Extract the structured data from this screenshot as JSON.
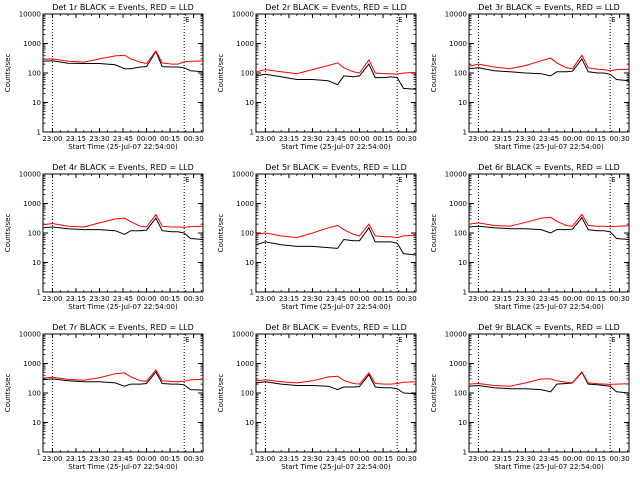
{
  "xlabel": "Start Time (25-Jul-07 22:54:00)",
  "ylabel": "Counts/sec",
  "x_tick_labels": [
    "23:00",
    "23:15",
    "23:30",
    "23:45",
    "00:00",
    "00:15",
    "00:30"
  ],
  "y_tick_labels": [
    "1",
    "10",
    "100",
    "1000",
    "10000"
  ],
  "colors": {
    "events": "#000000",
    "lld": "#ff0000",
    "axes": "#000000",
    "background": "#ffffff"
  },
  "chart_data": [
    {
      "type": "line",
      "title": "Det 1r BLACK = Events, RED = LLD",
      "corner_mark": "E",
      "ylim": [
        1,
        10000
      ],
      "ylog": true,
      "xlim_minutes": [
        -6,
        96
      ],
      "vlines_minutes": [
        0,
        84
      ],
      "x_minutes": [
        -6,
        0,
        10,
        20,
        30,
        40,
        46,
        50,
        56,
        60,
        66,
        70,
        76,
        80,
        84,
        88,
        96
      ],
      "series": [
        {
          "name": "BLACK = Events",
          "values": [
            250,
            260,
            215,
            210,
            210,
            190,
            140,
            140,
            160,
            165,
            530,
            165,
            160,
            160,
            150,
            120,
            110
          ]
        },
        {
          "name": "RED = LLD",
          "values": [
            290,
            300,
            250,
            235,
            300,
            380,
            400,
            300,
            230,
            210,
            560,
            220,
            200,
            200,
            240,
            250,
            255
          ]
        }
      ]
    },
    {
      "type": "line",
      "title": "Det 2r BLACK = Events, RED = LLD",
      "corner_mark": "E",
      "ylim": [
        1,
        10000
      ],
      "ylog": true,
      "xlim_minutes": [
        -6,
        96
      ],
      "vlines_minutes": [
        0,
        84
      ],
      "x_minutes": [
        -6,
        0,
        10,
        20,
        30,
        40,
        46,
        50,
        56,
        60,
        66,
        70,
        76,
        80,
        84,
        88,
        96
      ],
      "series": [
        {
          "name": "BLACK = Events",
          "values": [
            80,
            90,
            75,
            60,
            60,
            55,
            40,
            80,
            75,
            80,
            200,
            70,
            70,
            75,
            70,
            30,
            28
          ]
        },
        {
          "name": "RED = LLD",
          "values": [
            110,
            130,
            110,
            95,
            130,
            180,
            220,
            150,
            110,
            100,
            280,
            100,
            95,
            95,
            90,
            100,
            105
          ]
        }
      ]
    },
    {
      "type": "line",
      "title": "Det 3r BLACK = Events, RED = LLD",
      "corner_mark": "E",
      "ylim": [
        1,
        10000
      ],
      "ylog": true,
      "xlim_minutes": [
        -6,
        96
      ],
      "vlines_minutes": [
        0,
        84
      ],
      "x_minutes": [
        -6,
        0,
        10,
        20,
        30,
        40,
        46,
        50,
        56,
        60,
        66,
        70,
        76,
        80,
        84,
        88,
        96
      ],
      "series": [
        {
          "name": "BLACK = Events",
          "values": [
            140,
            150,
            120,
            110,
            100,
            95,
            80,
            110,
            110,
            115,
            300,
            110,
            100,
            100,
            90,
            60,
            55
          ]
        },
        {
          "name": "RED = LLD",
          "values": [
            170,
            200,
            160,
            140,
            180,
            260,
            320,
            220,
            150,
            140,
            400,
            150,
            135,
            130,
            120,
            130,
            135
          ]
        }
      ]
    },
    {
      "type": "line",
      "title": "Det 4r BLACK = Events, RED = LLD",
      "corner_mark": "E",
      "ylim": [
        1,
        10000
      ],
      "ylog": true,
      "xlim_minutes": [
        -6,
        96
      ],
      "vlines_minutes": [
        0,
        84
      ],
      "x_minutes": [
        -6,
        0,
        10,
        20,
        30,
        40,
        46,
        50,
        56,
        60,
        66,
        70,
        76,
        80,
        84,
        88,
        96
      ],
      "series": [
        {
          "name": "BLACK = Events",
          "values": [
            150,
            160,
            140,
            130,
            130,
            120,
            90,
            120,
            120,
            125,
            320,
            120,
            110,
            110,
            100,
            65,
            60
          ]
        },
        {
          "name": "RED = LLD",
          "values": [
            190,
            210,
            170,
            160,
            220,
            300,
            320,
            240,
            170,
            160,
            420,
            170,
            160,
            160,
            155,
            165,
            170
          ]
        }
      ]
    },
    {
      "type": "line",
      "title": "Det 5r BLACK = Events, RED = LLD",
      "corner_mark": "E",
      "ylim": [
        1,
        10000
      ],
      "ylog": true,
      "xlim_minutes": [
        -6,
        96
      ],
      "vlines_minutes": [
        0,
        84
      ],
      "x_minutes": [
        -6,
        0,
        10,
        20,
        30,
        40,
        46,
        50,
        56,
        60,
        66,
        70,
        76,
        80,
        84,
        88,
        96
      ],
      "series": [
        {
          "name": "BLACK = Events",
          "values": [
            40,
            50,
            40,
            35,
            35,
            32,
            30,
            60,
            55,
            55,
            150,
            50,
            50,
            50,
            45,
            20,
            18
          ]
        },
        {
          "name": "RED = LLD",
          "values": [
            90,
            100,
            80,
            70,
            100,
            150,
            180,
            130,
            90,
            80,
            200,
            80,
            75,
            75,
            70,
            80,
            85
          ]
        }
      ]
    },
    {
      "type": "line",
      "title": "Det 6r BLACK = Events, RED = LLD",
      "corner_mark": "E",
      "ylim": [
        1,
        10000
      ],
      "ylog": true,
      "xlim_minutes": [
        -6,
        96
      ],
      "vlines_minutes": [
        0,
        84
      ],
      "x_minutes": [
        -6,
        0,
        10,
        20,
        30,
        40,
        46,
        50,
        56,
        60,
        66,
        70,
        76,
        80,
        84,
        88,
        96
      ],
      "series": [
        {
          "name": "BLACK = Events",
          "values": [
            160,
            170,
            150,
            140,
            140,
            130,
            100,
            130,
            130,
            135,
            330,
            130,
            120,
            120,
            110,
            65,
            60
          ]
        },
        {
          "name": "RED = LLD",
          "values": [
            200,
            220,
            180,
            170,
            230,
            320,
            340,
            250,
            180,
            170,
            430,
            180,
            170,
            170,
            165,
            170,
            175
          ]
        }
      ]
    },
    {
      "type": "line",
      "title": "Det 7r BLACK = Events, RED = LLD",
      "corner_mark": "E",
      "ylim": [
        1,
        10000
      ],
      "ylog": true,
      "xlim_minutes": [
        -6,
        96
      ],
      "vlines_minutes": [
        0,
        84
      ],
      "x_minutes": [
        -6,
        0,
        10,
        20,
        30,
        40,
        46,
        50,
        56,
        60,
        66,
        70,
        76,
        80,
        84,
        88,
        96
      ],
      "series": [
        {
          "name": "BLACK = Events",
          "values": [
            280,
            300,
            260,
            240,
            240,
            220,
            170,
            200,
            200,
            210,
            520,
            210,
            200,
            200,
            190,
            130,
            125
          ]
        },
        {
          "name": "RED = LLD",
          "values": [
            320,
            340,
            290,
            270,
            330,
            450,
            480,
            350,
            260,
            250,
            600,
            260,
            245,
            240,
            250,
            280,
            290
          ]
        }
      ]
    },
    {
      "type": "line",
      "title": "Det 8r BLACK = Events, RED = LLD",
      "corner_mark": "E",
      "ylim": [
        1,
        10000
      ],
      "ylog": true,
      "xlim_minutes": [
        -6,
        96
      ],
      "vlines_minutes": [
        0,
        84
      ],
      "x_minutes": [
        -6,
        0,
        10,
        20,
        30,
        40,
        46,
        50,
        56,
        60,
        66,
        70,
        76,
        80,
        84,
        88,
        96
      ],
      "series": [
        {
          "name": "BLACK = Events",
          "values": [
            220,
            240,
            200,
            180,
            180,
            170,
            130,
            160,
            160,
            165,
            420,
            160,
            150,
            150,
            140,
            100,
            95
          ]
        },
        {
          "name": "RED = LLD",
          "values": [
            260,
            280,
            240,
            220,
            260,
            350,
            370,
            270,
            210,
            200,
            480,
            210,
            200,
            200,
            210,
            230,
            240
          ]
        }
      ]
    },
    {
      "type": "line",
      "title": "Det 9r BLACK = Events, RED = LLD",
      "corner_mark": "E",
      "ylim": [
        1,
        10000
      ],
      "ylog": true,
      "xlim_minutes": [
        -6,
        96
      ],
      "vlines_minutes": [
        0,
        84
      ],
      "x_minutes": [
        -6,
        0,
        10,
        20,
        30,
        40,
        46,
        50,
        56,
        60,
        66,
        70,
        76,
        80,
        84,
        88,
        96
      ],
      "series": [
        {
          "name": "BLACK = Events",
          "values": [
            170,
            180,
            150,
            140,
            140,
            130,
            110,
            200,
            210,
            220,
            500,
            200,
            190,
            180,
            170,
            110,
            100
          ]
        },
        {
          "name": "RED = LLD",
          "values": [
            200,
            210,
            180,
            170,
            220,
            300,
            300,
            260,
            230,
            225,
            520,
            220,
            205,
            200,
            195,
            200,
            205
          ]
        }
      ]
    }
  ]
}
